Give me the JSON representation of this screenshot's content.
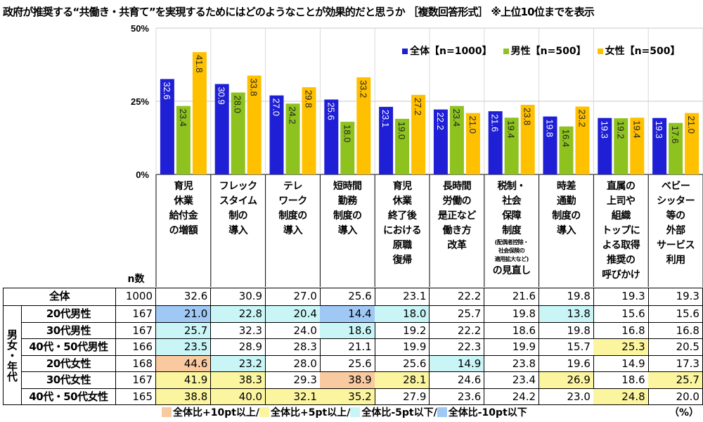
{
  "title": "政府が推奨する“共働き・共育て”を実現するためにはどのようなことが効果的だと思うか ［複数回答形式］ ※上位10位までを表示",
  "chart_data": {
    "type": "bar",
    "ylim": [
      0,
      50
    ],
    "yticks": [
      "0%",
      "25%",
      "50%"
    ],
    "ytick_values": [
      0,
      25,
      50
    ],
    "legend_position": "top-right",
    "categories": [
      [
        "育児",
        "休業",
        "給付金",
        "の増額"
      ],
      [
        "フレック",
        "スタイム",
        "制の",
        "導入"
      ],
      [
        "テレ",
        "ワーク",
        "制度の",
        "導入"
      ],
      [
        "短時間",
        "勤務",
        "制度の",
        "導入"
      ],
      [
        "育児",
        "休業",
        "終了後",
        "における",
        "原職",
        "復帰"
      ],
      [
        "長時間",
        "労働の",
        "是正など",
        "働き方",
        "改革"
      ],
      [
        "税制・",
        "社会",
        "保障",
        "制度",
        "(配偶者控除・",
        "社会保険の",
        "適用拡大など)",
        "の見直し"
      ],
      [
        "時差",
        "通勤",
        "制度の",
        "導入"
      ],
      [
        "直属の",
        "上司や",
        "組織",
        "トップに",
        "よる取得",
        "推奨の",
        "呼びかけ"
      ],
      [
        "ベビー",
        "シッター",
        "等の",
        "外部",
        "サービス",
        "利用"
      ]
    ],
    "series": [
      {
        "name": "全体【n=1000】",
        "color": "#1f1fd6",
        "values": [
          32.6,
          30.9,
          27.0,
          25.6,
          23.1,
          22.2,
          21.6,
          19.8,
          19.3,
          19.3
        ]
      },
      {
        "name": "男性【n=500】",
        "color": "#8dc21f",
        "values": [
          23.4,
          28.0,
          24.2,
          18.0,
          19.0,
          23.4,
          19.4,
          16.4,
          19.2,
          17.6
        ]
      },
      {
        "name": "女性【n=500】",
        "color": "#ffc000",
        "values": [
          41.8,
          33.8,
          29.8,
          33.2,
          27.2,
          21.0,
          23.8,
          23.2,
          19.4,
          21.0
        ]
      }
    ]
  },
  "table": {
    "n_header": "n数",
    "group_label": "男女・年代",
    "rows": [
      {
        "label": "全体",
        "n": "1000",
        "values": [
          "32.6",
          "30.9",
          "27.0",
          "25.6",
          "23.1",
          "22.2",
          "21.6",
          "19.8",
          "19.3",
          "19.3"
        ]
      },
      {
        "label": "20代男性",
        "n": "167",
        "values": [
          "21.0",
          "22.8",
          "20.4",
          "14.4",
          "18.0",
          "25.7",
          "19.8",
          "13.8",
          "15.6",
          "15.6"
        ]
      },
      {
        "label": "30代男性",
        "n": "167",
        "values": [
          "25.7",
          "32.3",
          "24.0",
          "18.6",
          "19.2",
          "22.2",
          "18.6",
          "19.8",
          "16.8",
          "16.8"
        ]
      },
      {
        "label": "40代・50代男性",
        "n": "166",
        "values": [
          "23.5",
          "28.9",
          "28.3",
          "21.1",
          "19.9",
          "22.3",
          "19.9",
          "15.7",
          "25.3",
          "20.5"
        ]
      },
      {
        "label": "20代女性",
        "n": "168",
        "values": [
          "44.6",
          "23.2",
          "28.0",
          "25.6",
          "25.6",
          "14.9",
          "23.8",
          "19.6",
          "14.9",
          "17.3"
        ]
      },
      {
        "label": "30代女性",
        "n": "167",
        "values": [
          "41.9",
          "38.3",
          "29.3",
          "38.9",
          "28.1",
          "24.6",
          "23.4",
          "26.9",
          "18.6",
          "25.7"
        ]
      },
      {
        "label": "40代・50代女性",
        "n": "165",
        "values": [
          "38.8",
          "40.0",
          "32.1",
          "35.2",
          "27.9",
          "23.6",
          "24.2",
          "23.0",
          "24.8",
          "20.0"
        ]
      }
    ]
  },
  "highlight_legend": [
    {
      "label": "全体比+10pt以上/",
      "color": "#f9c9a0"
    },
    {
      "label": "全体比+5pt以上/",
      "color": "#fbf5a0"
    },
    {
      "label": "全体比-5pt以下/",
      "color": "#c9f5f7"
    },
    {
      "label": "全体比-10pt以下",
      "color": "#9fc8f5"
    }
  ],
  "unit": "（%）"
}
